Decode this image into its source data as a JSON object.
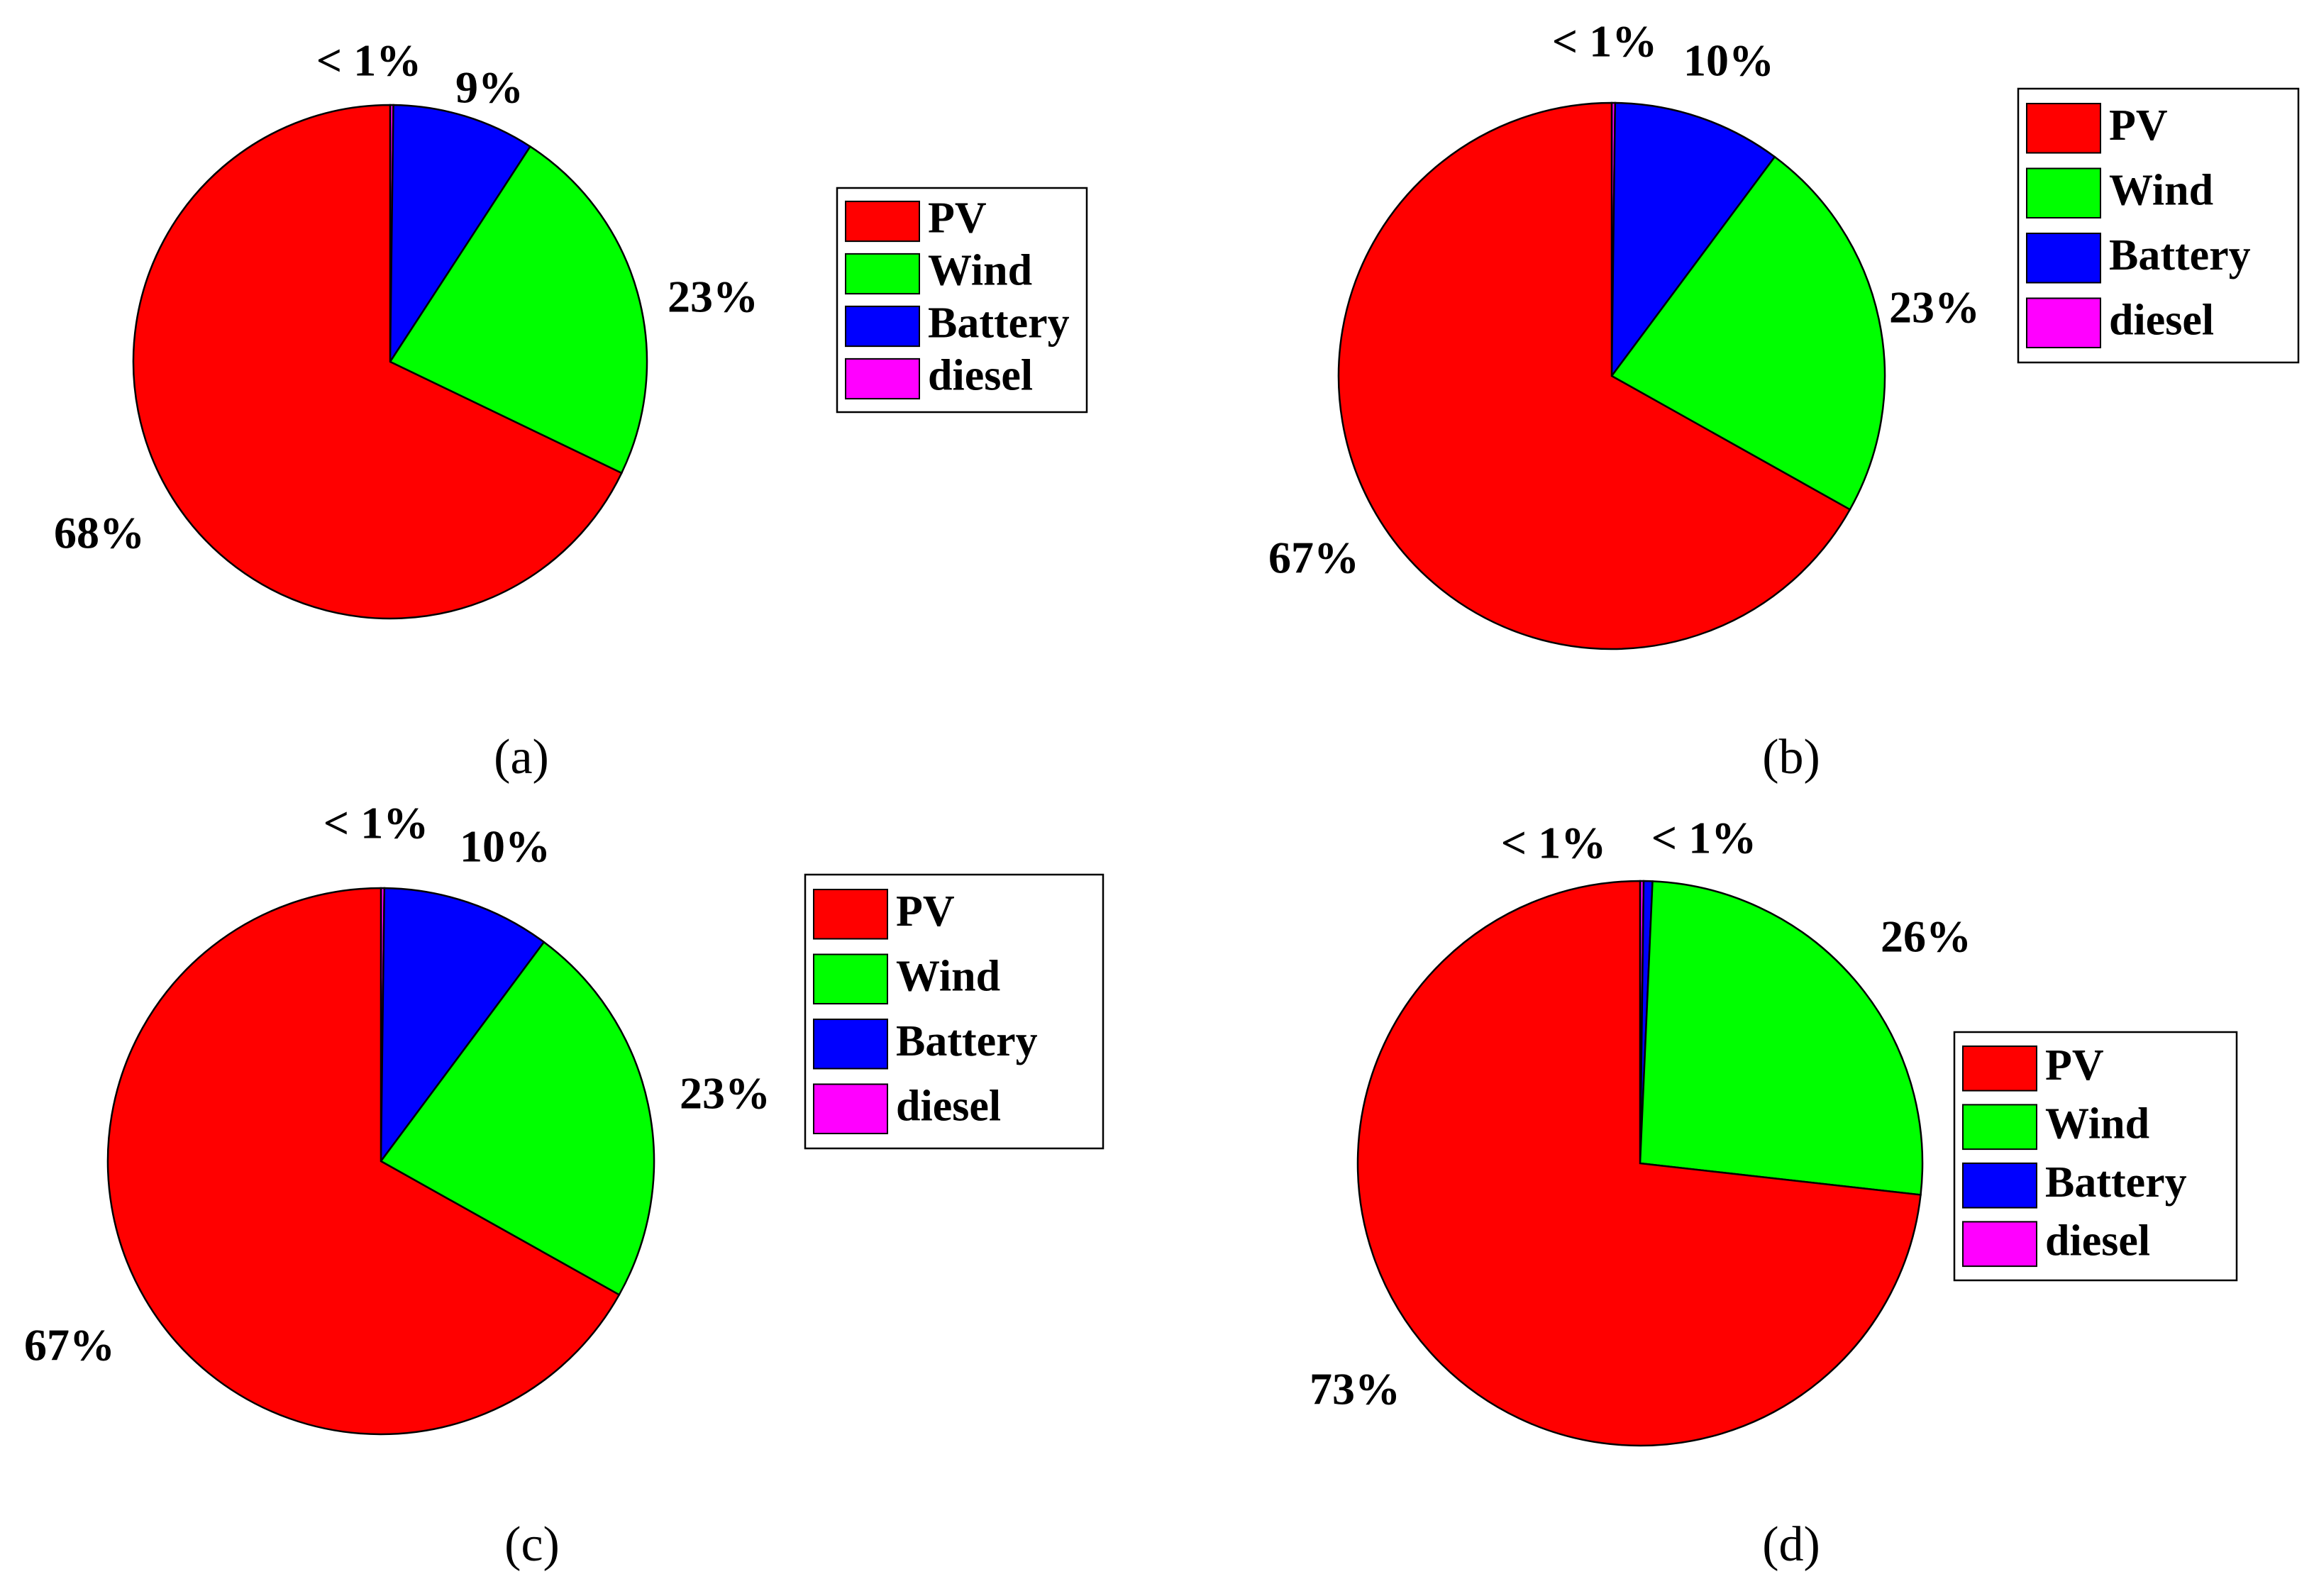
{
  "chart_data": [
    {
      "type": "pie",
      "panel": "(a)",
      "slices": [
        {
          "name": "PV",
          "value": 68,
          "label": "68%",
          "color": "#ff0000"
        },
        {
          "name": "Wind",
          "value": 23,
          "label": "23%",
          "color": "#00ff00"
        },
        {
          "name": "Battery",
          "value": 9,
          "label": "9%",
          "color": "#0000ff"
        },
        {
          "name": "diesel",
          "value": 0.2,
          "label": "< 1%",
          "color": "#ff00ff"
        }
      ],
      "legend": [
        "PV",
        "Wind",
        "Battery",
        "diesel"
      ],
      "legend_placement": "right"
    },
    {
      "type": "pie",
      "panel": "(b)",
      "slices": [
        {
          "name": "PV",
          "value": 67,
          "label": "67%",
          "color": "#ff0000"
        },
        {
          "name": "Wind",
          "value": 23,
          "label": "23%",
          "color": "#00ff00"
        },
        {
          "name": "Battery",
          "value": 10,
          "label": "10%",
          "color": "#0000ff"
        },
        {
          "name": "diesel",
          "value": 0.2,
          "label": "< 1%",
          "color": "#ff00ff"
        }
      ],
      "legend": [
        "PV",
        "Wind",
        "Battery",
        "diesel"
      ],
      "legend_placement": "top-right"
    },
    {
      "type": "pie",
      "panel": "(c)",
      "slices": [
        {
          "name": "PV",
          "value": 67,
          "label": "67%",
          "color": "#ff0000"
        },
        {
          "name": "Wind",
          "value": 23,
          "label": "23%",
          "color": "#00ff00"
        },
        {
          "name": "Battery",
          "value": 10,
          "label": "10%",
          "color": "#0000ff"
        },
        {
          "name": "diesel",
          "value": 0.2,
          "label": "< 1%",
          "color": "#ff00ff"
        }
      ],
      "legend": [
        "PV",
        "Wind",
        "Battery",
        "diesel"
      ],
      "legend_placement": "right"
    },
    {
      "type": "pie",
      "panel": "(d)",
      "slices": [
        {
          "name": "PV",
          "value": 73,
          "label": "73%",
          "color": "#ff0000"
        },
        {
          "name": "Wind",
          "value": 26,
          "label": "26%",
          "color": "#00ff00"
        },
        {
          "name": "Battery",
          "value": 0.5,
          "label": "< 1%",
          "color": "#0000ff"
        },
        {
          "name": "diesel",
          "value": 0.2,
          "label": "< 1%",
          "color": "#ff00ff"
        }
      ],
      "legend": [
        "PV",
        "Wind",
        "Battery",
        "diesel"
      ],
      "legend_placement": "right"
    }
  ]
}
